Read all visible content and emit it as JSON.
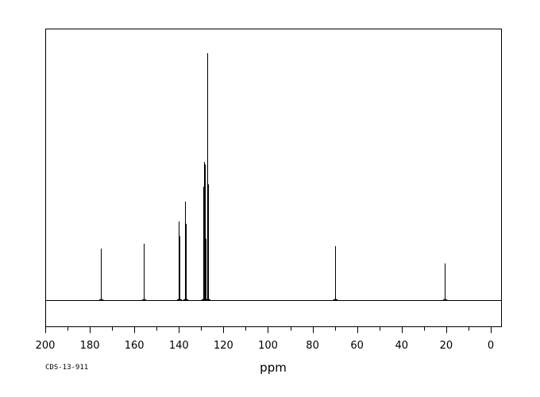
{
  "chart_data": {
    "type": "line",
    "xlabel": "ppm",
    "ylabel": "",
    "xlim": [
      200,
      -5
    ],
    "x_reversed": true,
    "x_ticks": [
      200,
      180,
      160,
      140,
      120,
      100,
      80,
      60,
      40,
      20,
      0
    ],
    "grid": false,
    "spectrum_code": "CDS-13-911",
    "y_units": "relative intensity",
    "peaks": [
      {
        "ppm": 175.0,
        "intensity": 0.21
      },
      {
        "ppm": 155.8,
        "intensity": 0.23
      },
      {
        "ppm": 140.1,
        "intensity": 0.32
      },
      {
        "ppm": 139.8,
        "intensity": 0.26
      },
      {
        "ppm": 137.2,
        "intensity": 0.4
      },
      {
        "ppm": 137.0,
        "intensity": 0.31
      },
      {
        "ppm": 129.2,
        "intensity": 0.46
      },
      {
        "ppm": 128.8,
        "intensity": 0.56
      },
      {
        "ppm": 128.4,
        "intensity": 0.55
      },
      {
        "ppm": 127.9,
        "intensity": 0.25
      },
      {
        "ppm": 127.2,
        "intensity": 1.0
      },
      {
        "ppm": 126.8,
        "intensity": 0.47
      },
      {
        "ppm": 70.0,
        "intensity": 0.22
      },
      {
        "ppm": 69.7,
        "intensity": 0.18
      },
      {
        "ppm": 20.6,
        "intensity": 0.15
      }
    ]
  }
}
